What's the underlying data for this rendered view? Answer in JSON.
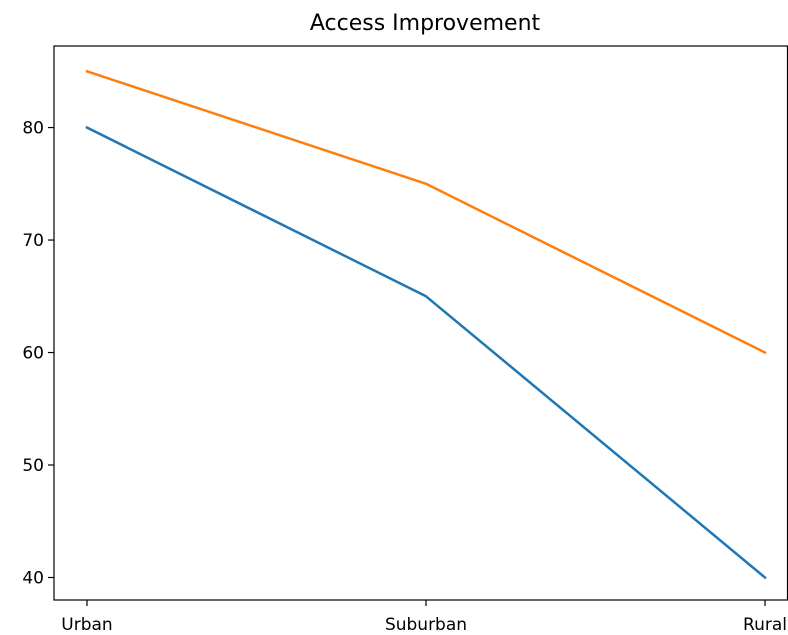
{
  "chart_data": {
    "type": "line",
    "title": "Access Improvement",
    "xlabel": "",
    "ylabel": "",
    "categories": [
      "Urban",
      "Suburban",
      "Rural"
    ],
    "yticks": [
      40,
      50,
      60,
      70,
      80
    ],
    "ylim": [
      38,
      87.25
    ],
    "grid": false,
    "legend": "none",
    "series": [
      {
        "values": [
          80,
          65,
          40
        ],
        "color": "#1f77b4"
      },
      {
        "values": [
          85,
          75,
          60
        ],
        "color": "#ff7f0e"
      }
    ]
  }
}
